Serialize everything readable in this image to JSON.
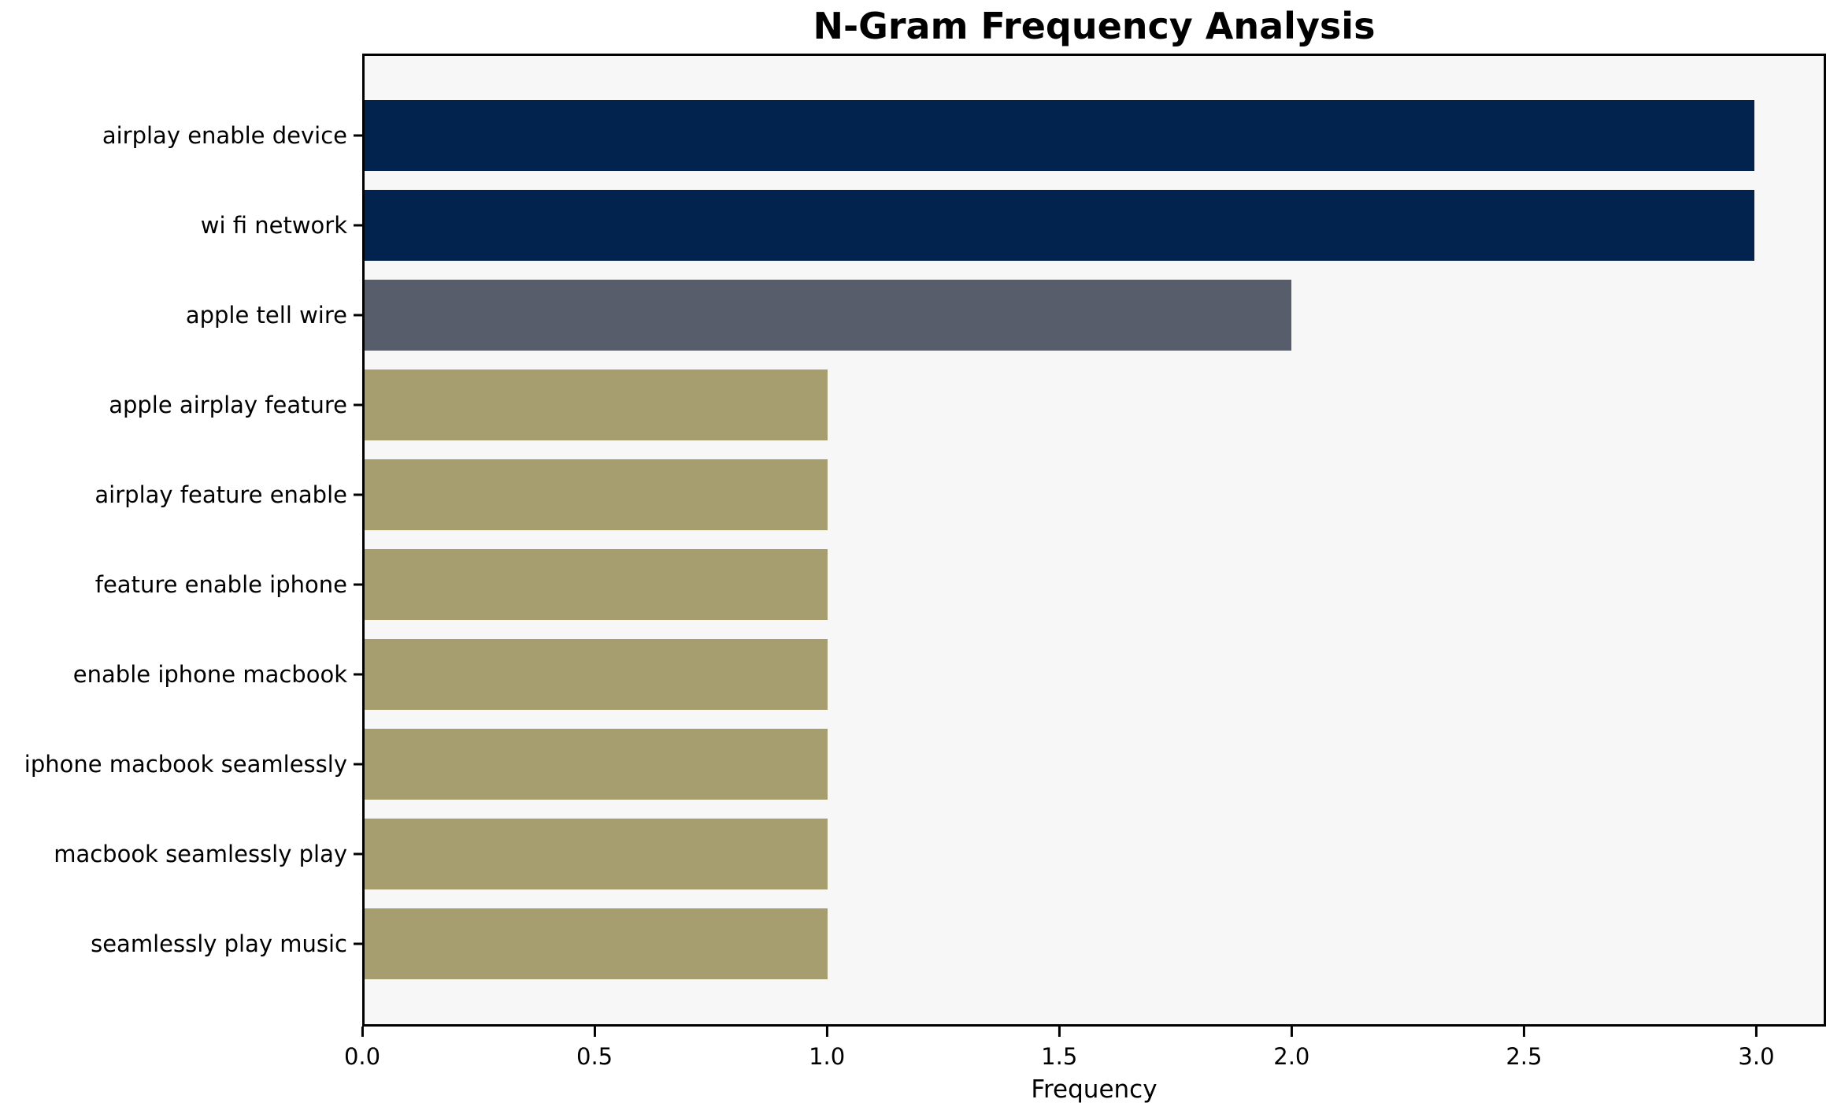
{
  "chart_data": {
    "type": "bar",
    "orientation": "horizontal",
    "title": "N-Gram Frequency Analysis",
    "xlabel": "Frequency",
    "ylabel": "",
    "categories": [
      "airplay enable device",
      "wi fi network",
      "apple tell wire",
      "apple airplay feature",
      "airplay feature enable",
      "feature enable iphone",
      "enable iphone macbook",
      "iphone macbook seamlessly",
      "macbook seamlessly play",
      "seamlessly play music"
    ],
    "values": [
      3,
      3,
      2,
      1,
      1,
      1,
      1,
      1,
      1,
      1
    ],
    "bar_colors": [
      "#02234d",
      "#02234d",
      "#575d6b",
      "#a69e6e",
      "#a69e6e",
      "#a69e6e",
      "#a69e6e",
      "#a69e6e",
      "#a69e6e",
      "#a69e6e"
    ],
    "xlim": [
      0,
      3.15
    ],
    "xticks": [
      0.0,
      0.5,
      1.0,
      1.5,
      2.0,
      2.5,
      3.0
    ],
    "xtick_labels": [
      "0.0",
      "0.5",
      "1.0",
      "1.5",
      "2.0",
      "2.5",
      "3.0"
    ],
    "grid": false,
    "legend": null,
    "colors": {
      "frequency_3": "#02234d",
      "frequency_2": "#575d6b",
      "frequency_1": "#a69e6e",
      "plot_background": "#f7f7f7",
      "figure_background": "#ffffff",
      "spine": "#000000",
      "text": "#000000"
    }
  }
}
